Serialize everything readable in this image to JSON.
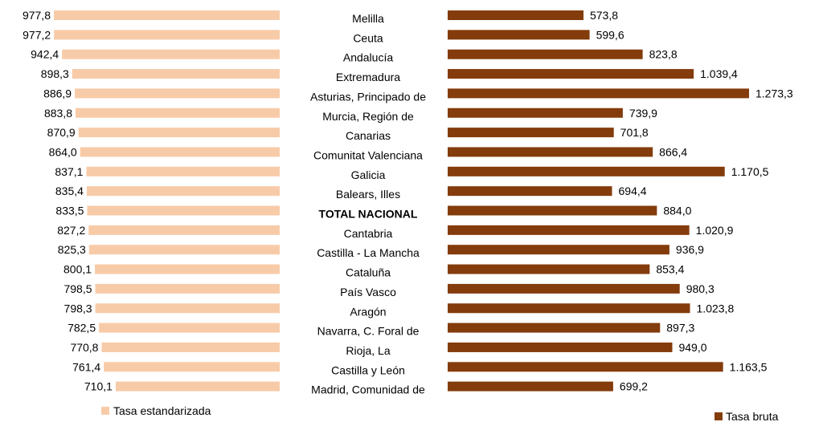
{
  "chart_data": {
    "type": "bar",
    "orientation": "horizontal",
    "categories": [
      "Melilla",
      "Ceuta",
      "Andalucía",
      "Extremadura",
      "Asturias, Principado de",
      "Murcia, Región de",
      "Canarias",
      "Comunitat Valenciana",
      "Galicia",
      "Balears, Illes",
      "TOTAL NACIONAL",
      "Cantabria",
      "Castilla - La Mancha",
      "Cataluña",
      "País Vasco",
      "Aragón",
      "Navarra, C. Foral de",
      "Rioja, La",
      "Castilla y León",
      "Madrid, Comunidad de"
    ],
    "highlight_category": "TOTAL NACIONAL",
    "series": [
      {
        "name": "Tasa estandarizada",
        "color": "#f8cba8",
        "direction": "left",
        "values": [
          977.8,
          977.2,
          942.4,
          898.3,
          886.9,
          883.8,
          870.9,
          864.0,
          837.1,
          835.4,
          833.5,
          827.2,
          825.3,
          800.1,
          798.5,
          798.3,
          782.5,
          770.8,
          761.4,
          710.1
        ],
        "labels": [
          "977,8",
          "977,2",
          "942,4",
          "898,3",
          "886,9",
          "883,8",
          "870,9",
          "864,0",
          "837,1",
          "835,4",
          "833,5",
          "827,2",
          "825,3",
          "800,1",
          "798,5",
          "798,3",
          "782,5",
          "770,8",
          "761,4",
          "710,1"
        ]
      },
      {
        "name": "Tasa bruta",
        "color": "#843c0c",
        "direction": "right",
        "values": [
          573.8,
          599.6,
          823.8,
          1039.4,
          1273.3,
          739.9,
          701.8,
          866.4,
          1170.5,
          694.4,
          884.0,
          1020.9,
          936.9,
          853.4,
          980.3,
          1023.8,
          897.3,
          949.0,
          1163.5,
          699.2
        ],
        "labels": [
          "573,8",
          "599,6",
          "823,8",
          "1.039,4",
          "1.273,3",
          "739,9",
          "701,8",
          "866,4",
          "1.170,5",
          "694,4",
          "884,0",
          "1.020,9",
          "936,9",
          "853,4",
          "980,3",
          "1.023,8",
          "897,3",
          "949,0",
          "1.163,5",
          "699,2"
        ]
      }
    ],
    "legend": [
      {
        "name": "Tasa estandarizada",
        "placement": "bottom-left"
      },
      {
        "name": "Tasa bruta",
        "placement": "bottom-right"
      }
    ],
    "grid": false
  }
}
